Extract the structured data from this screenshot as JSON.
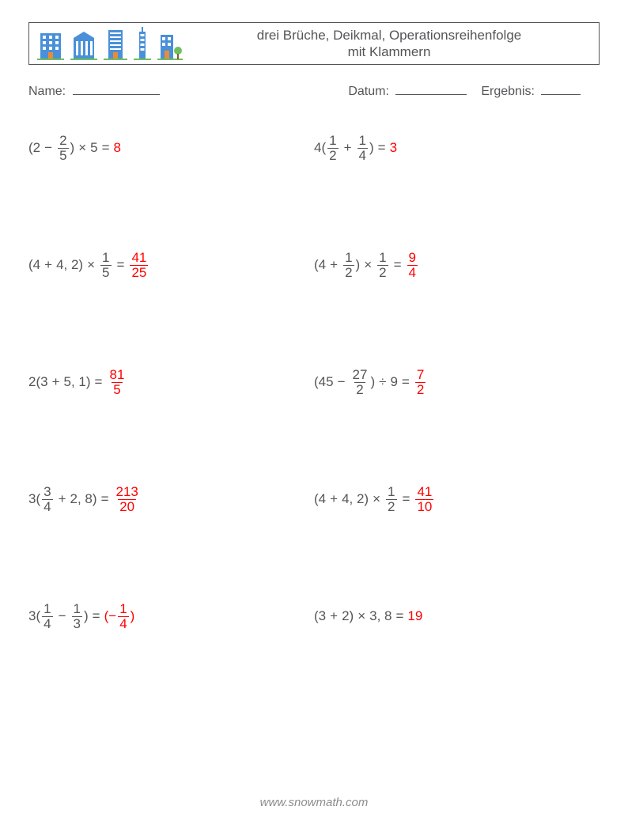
{
  "header": {
    "title_line1": "drei Brüche, Deikmal, Operationsreihenfolge",
    "title_line2": "mit Klammern"
  },
  "meta": {
    "name_label": "Name:",
    "name_blank_width": 110,
    "date_label": "Datum:",
    "date_blank_width": 90,
    "result_label": "Ergebnis:",
    "result_blank_width": 50
  },
  "icons": {
    "count": 5,
    "color_blue": "#4a90d9",
    "color_door": "#e88c3a",
    "color_grass": "#6fbf5f"
  },
  "colors": {
    "text": "#555559",
    "answer": "#ff0000",
    "background": "#ffffff",
    "footer": "#8d8d90"
  },
  "typography": {
    "body_fontsize": 17,
    "meta_fontsize": 16,
    "footer_fontsize": 15
  },
  "symbols": {
    "times": "×",
    "divide": "÷",
    "minus": "−",
    "plus": "+",
    "equals": "="
  },
  "problems": [
    {
      "left": {
        "parts": [
          {
            "t": "text",
            "v": "(2 "
          },
          {
            "t": "op",
            "v": "−"
          },
          {
            "t": "frac",
            "num": "2",
            "den": "5"
          },
          {
            "t": "text",
            "v": ") "
          },
          {
            "t": "op",
            "v": "×"
          },
          {
            "t": "text",
            "v": " 5 "
          },
          {
            "t": "op",
            "v": "="
          },
          {
            "t": "ans_text",
            "v": " 8"
          }
        ]
      },
      "right": {
        "parts": [
          {
            "t": "text",
            "v": "4("
          },
          {
            "t": "frac",
            "num": "1",
            "den": "2"
          },
          {
            "t": "op",
            "v": "+"
          },
          {
            "t": "frac",
            "num": "1",
            "den": "4"
          },
          {
            "t": "text",
            "v": ") "
          },
          {
            "t": "op",
            "v": "="
          },
          {
            "t": "ans_text",
            "v": " 3"
          }
        ]
      }
    },
    {
      "left": {
        "parts": [
          {
            "t": "text",
            "v": "(4 "
          },
          {
            "t": "op",
            "v": "+"
          },
          {
            "t": "text",
            "v": " 4, 2) "
          },
          {
            "t": "op",
            "v": "×"
          },
          {
            "t": "frac",
            "num": "1",
            "den": "5"
          },
          {
            "t": "op",
            "v": "="
          },
          {
            "t": "ans_frac",
            "num": "41",
            "den": "25"
          }
        ]
      },
      "right": {
        "parts": [
          {
            "t": "text",
            "v": "(4 "
          },
          {
            "t": "op",
            "v": "+"
          },
          {
            "t": "frac",
            "num": "1",
            "den": "2"
          },
          {
            "t": "text",
            "v": ") "
          },
          {
            "t": "op",
            "v": "×"
          },
          {
            "t": "frac",
            "num": "1",
            "den": "2"
          },
          {
            "t": "op",
            "v": "="
          },
          {
            "t": "ans_frac",
            "num": "9",
            "den": "4"
          }
        ]
      }
    },
    {
      "left": {
        "parts": [
          {
            "t": "text",
            "v": "2(3 "
          },
          {
            "t": "op",
            "v": "+"
          },
          {
            "t": "text",
            "v": " 5, 1) "
          },
          {
            "t": "op",
            "v": "="
          },
          {
            "t": "ans_frac",
            "num": "81",
            "den": "5"
          }
        ]
      },
      "right": {
        "parts": [
          {
            "t": "text",
            "v": "(45 "
          },
          {
            "t": "op",
            "v": "−"
          },
          {
            "t": "frac",
            "num": "27",
            "den": "2"
          },
          {
            "t": "text",
            "v": ") "
          },
          {
            "t": "op",
            "v": "÷"
          },
          {
            "t": "text",
            "v": " 9 "
          },
          {
            "t": "op",
            "v": "="
          },
          {
            "t": "ans_frac",
            "num": "7",
            "den": "2"
          }
        ]
      }
    },
    {
      "left": {
        "parts": [
          {
            "t": "text",
            "v": "3("
          },
          {
            "t": "frac",
            "num": "3",
            "den": "4"
          },
          {
            "t": "op",
            "v": "+"
          },
          {
            "t": "text",
            "v": " 2, 8) "
          },
          {
            "t": "op",
            "v": "="
          },
          {
            "t": "ans_frac",
            "num": "213",
            "den": "20"
          }
        ]
      },
      "right": {
        "parts": [
          {
            "t": "text",
            "v": "(4 "
          },
          {
            "t": "op",
            "v": "+"
          },
          {
            "t": "text",
            "v": " 4, 2) "
          },
          {
            "t": "op",
            "v": "×"
          },
          {
            "t": "frac",
            "num": "1",
            "den": "2"
          },
          {
            "t": "op",
            "v": "="
          },
          {
            "t": "ans_frac",
            "num": "41",
            "den": "10"
          }
        ]
      }
    },
    {
      "left": {
        "parts": [
          {
            "t": "text",
            "v": "3("
          },
          {
            "t": "frac",
            "num": "1",
            "den": "4"
          },
          {
            "t": "op",
            "v": "−"
          },
          {
            "t": "frac",
            "num": "1",
            "den": "3"
          },
          {
            "t": "text",
            "v": ") "
          },
          {
            "t": "op",
            "v": "="
          },
          {
            "t": "ans_text",
            "v": " (−"
          },
          {
            "t": "ans_frac",
            "num": "1",
            "den": "4"
          },
          {
            "t": "ans_text",
            "v": ")"
          }
        ]
      },
      "right": {
        "parts": [
          {
            "t": "text",
            "v": "(3 "
          },
          {
            "t": "op",
            "v": "+"
          },
          {
            "t": "text",
            "v": " 2) "
          },
          {
            "t": "op",
            "v": "×"
          },
          {
            "t": "text",
            "v": " 3, 8 "
          },
          {
            "t": "op",
            "v": "="
          },
          {
            "t": "ans_text",
            "v": " 19"
          }
        ]
      }
    }
  ],
  "footer": {
    "text": "www.snowmath.com"
  }
}
